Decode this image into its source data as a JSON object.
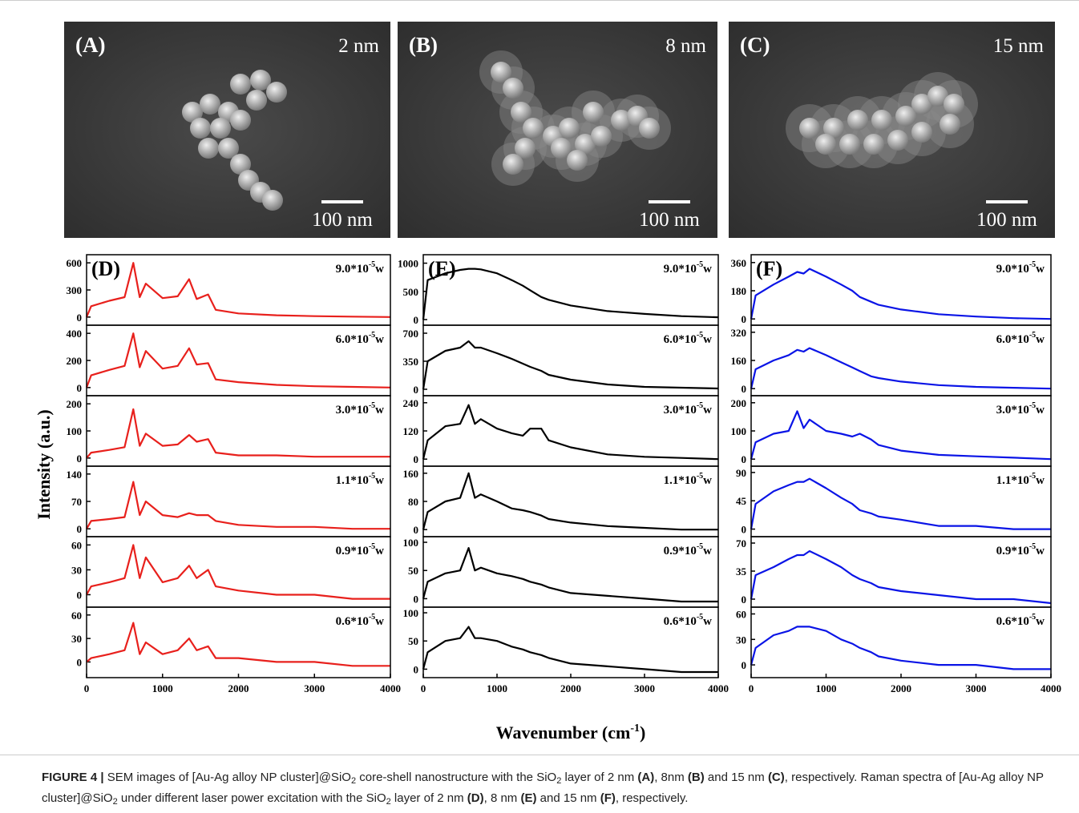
{
  "figure": {
    "sem_panels": [
      {
        "label": "(A)",
        "thickness": "2 nm",
        "scale_bar": "100 nm"
      },
      {
        "label": "(B)",
        "thickness": "8 nm",
        "scale_bar": "100 nm"
      },
      {
        "label": "(C)",
        "thickness": "15 nm",
        "scale_bar": "100 nm"
      }
    ],
    "y_axis_label": "Intensity (a.u.)",
    "x_axis_label": [
      {
        "text": "Wavenumber (cm"
      },
      {
        "text": "-1",
        "style": "sup"
      },
      {
        "text": ")"
      }
    ],
    "power_levels": [
      {
        "mantissa": "9.0*10",
        "exponent": "-5",
        "unit": "w"
      },
      {
        "mantissa": "6.0*10",
        "exponent": "-5",
        "unit": "w"
      },
      {
        "mantissa": "3.0*10",
        "exponent": "-5",
        "unit": "w"
      },
      {
        "mantissa": "1.1*10",
        "exponent": "-5",
        "unit": "w"
      },
      {
        "mantissa": "0.9*10",
        "exponent": "-5",
        "unit": "w"
      },
      {
        "mantissa": "0.6*10",
        "exponent": "-5",
        "unit": "w"
      }
    ],
    "wavenumbers": [
      0,
      60,
      300,
      500,
      615,
      700,
      780,
      1000,
      1200,
      1350,
      1450,
      1600,
      1700,
      2000,
      2500,
      3000,
      3500,
      4000
    ],
    "xlim": [
      0,
      4000
    ],
    "xticks": [
      0,
      1000,
      2000,
      3000,
      4000
    ],
    "spectra_panels": [
      {
        "label": "(D)",
        "color": "#e8201c",
        "subplots": [
          {
            "ylim": [
              -90,
              690
            ],
            "yticks": [
              0,
              300,
              600
            ],
            "values": [
              0,
              120,
              180,
              220,
              600,
              220,
              370,
              210,
              230,
              420,
              200,
              250,
              80,
              40,
              20,
              10,
              5,
              0
            ]
          },
          {
            "ylim": [
              -60,
              460
            ],
            "yticks": [
              0,
              200,
              400
            ],
            "values": [
              0,
              90,
              130,
              160,
              400,
              150,
              270,
              140,
              160,
              290,
              170,
              180,
              60,
              40,
              20,
              10,
              5,
              0
            ]
          },
          {
            "ylim": [
              -30,
              230
            ],
            "yticks": [
              0,
              100,
              200
            ],
            "values": [
              0,
              20,
              30,
              40,
              180,
              45,
              90,
              45,
              50,
              85,
              60,
              70,
              20,
              10,
              10,
              5,
              5,
              5
            ]
          },
          {
            "ylim": [
              -20,
              160
            ],
            "yticks": [
              0,
              70,
              140
            ],
            "values": [
              0,
              20,
              25,
              30,
              120,
              35,
              70,
              35,
              30,
              40,
              35,
              35,
              20,
              10,
              5,
              5,
              0,
              0
            ]
          },
          {
            "ylim": [
              -15,
              70
            ],
            "yticks": [
              0,
              30,
              60
            ],
            "values": [
              0,
              10,
              15,
              20,
              60,
              20,
              45,
              15,
              20,
              35,
              20,
              30,
              10,
              5,
              0,
              0,
              -5,
              -5
            ]
          },
          {
            "ylim": [
              -20,
              70
            ],
            "yticks": [
              0,
              30,
              60
            ],
            "values": [
              0,
              5,
              10,
              15,
              50,
              10,
              25,
              10,
              15,
              30,
              15,
              20,
              5,
              5,
              0,
              0,
              -5,
              -5
            ]
          }
        ]
      },
      {
        "label": "(E)",
        "color": "#000000",
        "subplots": [
          {
            "ylim": [
              -100,
              1150
            ],
            "yticks": [
              0,
              500,
              1000
            ],
            "values": [
              0,
              700,
              820,
              880,
              900,
              900,
              890,
              820,
              700,
              600,
              520,
              400,
              350,
              250,
              150,
              100,
              60,
              40
            ]
          },
          {
            "ylim": [
              -80,
              800
            ],
            "yticks": [
              0,
              350,
              700
            ],
            "values": [
              0,
              350,
              480,
              520,
              600,
              520,
              520,
              450,
              380,
              320,
              280,
              230,
              180,
              120,
              60,
              30,
              20,
              10
            ]
          },
          {
            "ylim": [
              -30,
              270
            ],
            "yticks": [
              0,
              120,
              240
            ],
            "values": [
              0,
              80,
              140,
              150,
              230,
              150,
              170,
              130,
              110,
              100,
              130,
              130,
              80,
              50,
              20,
              10,
              5,
              0
            ]
          },
          {
            "ylim": [
              -20,
              180
            ],
            "yticks": [
              0,
              80,
              160
            ],
            "values": [
              0,
              50,
              80,
              90,
              160,
              90,
              100,
              80,
              60,
              55,
              50,
              40,
              30,
              20,
              10,
              5,
              0,
              0
            ]
          },
          {
            "ylim": [
              -15,
              110
            ],
            "yticks": [
              0,
              50,
              100
            ],
            "values": [
              0,
              30,
              45,
              50,
              90,
              50,
              55,
              45,
              40,
              35,
              30,
              25,
              20,
              10,
              5,
              0,
              -5,
              -5
            ]
          },
          {
            "ylim": [
              -15,
              110
            ],
            "yticks": [
              0,
              50,
              100
            ],
            "values": [
              0,
              30,
              50,
              55,
              75,
              55,
              55,
              50,
              40,
              35,
              30,
              25,
              20,
              10,
              5,
              0,
              -5,
              -5
            ]
          }
        ]
      },
      {
        "label": "(F)",
        "color": "#0a14e6",
        "subplots": [
          {
            "ylim": [
              -40,
              410
            ],
            "yticks": [
              0,
              180,
              360
            ],
            "values": [
              0,
              150,
              220,
              270,
              300,
              290,
              320,
              270,
              220,
              180,
              140,
              110,
              90,
              60,
              30,
              15,
              5,
              0
            ]
          },
          {
            "ylim": [
              -40,
              360
            ],
            "yticks": [
              0,
              160,
              320
            ],
            "values": [
              0,
              110,
              160,
              190,
              220,
              210,
              230,
              190,
              150,
              120,
              100,
              70,
              60,
              40,
              20,
              10,
              5,
              0
            ]
          },
          {
            "ylim": [
              -25,
              225
            ],
            "yticks": [
              0,
              100,
              200
            ],
            "values": [
              0,
              60,
              90,
              100,
              170,
              110,
              140,
              100,
              90,
              80,
              90,
              70,
              50,
              30,
              15,
              10,
              5,
              0
            ]
          },
          {
            "ylim": [
              -12,
              100
            ],
            "yticks": [
              0,
              45,
              90
            ],
            "values": [
              0,
              40,
              60,
              70,
              75,
              75,
              80,
              65,
              50,
              40,
              30,
              25,
              20,
              15,
              5,
              5,
              0,
              0
            ]
          },
          {
            "ylim": [
              -10,
              78
            ],
            "yticks": [
              0,
              35,
              70
            ],
            "values": [
              0,
              30,
              40,
              50,
              55,
              55,
              60,
              50,
              40,
              30,
              25,
              20,
              15,
              10,
              5,
              0,
              0,
              -5
            ]
          },
          {
            "ylim": [
              -15,
              68
            ],
            "yticks": [
              0,
              30,
              60
            ],
            "values": [
              0,
              20,
              35,
              40,
              45,
              45,
              45,
              40,
              30,
              25,
              20,
              15,
              10,
              5,
              0,
              0,
              -5,
              -5
            ]
          }
        ]
      }
    ],
    "caption": [
      {
        "text": "FIGURE 4 |",
        "style": "bold"
      },
      {
        "text": " SEM images of [Au-Ag alloy NP cluster]@SiO"
      },
      {
        "text": "2",
        "style": "sub"
      },
      {
        "text": " core-shell nanostructure with the SiO"
      },
      {
        "text": "2",
        "style": "sub"
      },
      {
        "text": " layer of 2 nm "
      },
      {
        "text": "(A)",
        "style": "bold"
      },
      {
        "text": ", 8nm "
      },
      {
        "text": "(B)",
        "style": "bold"
      },
      {
        "text": " and 15 nm "
      },
      {
        "text": "(C)",
        "style": "bold"
      },
      {
        "text": ", respectively. Raman spectra of [Au-Ag alloy NP cluster]@SiO"
      },
      {
        "text": "2",
        "style": "sub"
      },
      {
        "text": " under different laser power excitation with the SiO"
      },
      {
        "text": "2",
        "style": "sub"
      },
      {
        "text": " layer of 2 nm "
      },
      {
        "text": "(D)",
        "style": "bold"
      },
      {
        "text": ", 8 nm "
      },
      {
        "text": "(E)",
        "style": "bold"
      },
      {
        "text": " and 15 nm "
      },
      {
        "text": "(F)",
        "style": "bold"
      },
      {
        "text": ", respectively."
      }
    ]
  }
}
